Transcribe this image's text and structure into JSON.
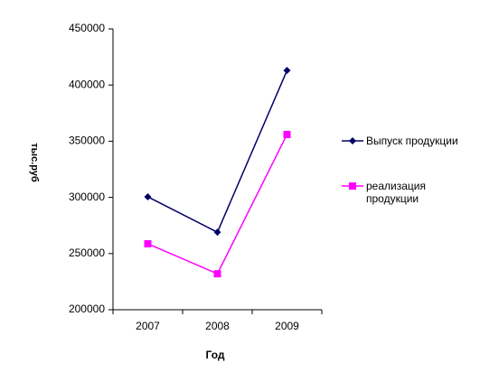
{
  "chart_data": {
    "type": "line",
    "categories": [
      "2007",
      "2008",
      "2009"
    ],
    "series": [
      {
        "name": "Выпуск продукции",
        "color": "#000066",
        "marker": "diamond",
        "values": [
          300500,
          269000,
          413000
        ]
      },
      {
        "name": "реализация продукции",
        "color": "#ff00ff",
        "marker": "square",
        "values": [
          258700,
          232000,
          356000
        ]
      }
    ],
    "ylim": [
      200000,
      450000
    ],
    "yticks": [
      200000,
      250000,
      300000,
      350000,
      400000,
      450000
    ],
    "x_label": "Год",
    "y_label": "тыс.руб",
    "grid": false,
    "legend": "right"
  }
}
